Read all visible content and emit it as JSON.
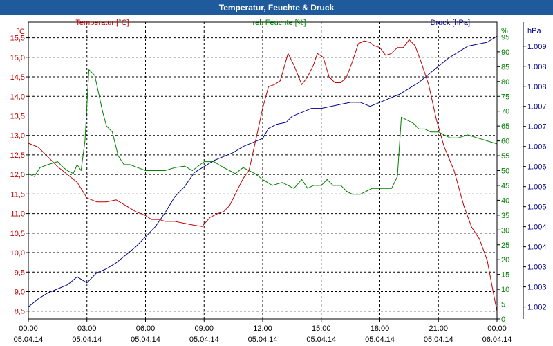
{
  "window": {
    "title": "Temperatur, Feuchte & Druck"
  },
  "chart_data": {
    "type": "line",
    "title": "Temperatur, Feuchte & Druck",
    "x_ticks": [
      {
        "h": 0,
        "time": "00:00",
        "date": "05.04.14"
      },
      {
        "h": 3,
        "time": "03:00",
        "date": "05.04.14"
      },
      {
        "h": 6,
        "time": "06:00",
        "date": "05.04.14"
      },
      {
        "h": 9,
        "time": "09:00",
        "date": "05.04.14"
      },
      {
        "h": 12,
        "time": "12:00",
        "date": "05.04.14"
      },
      {
        "h": 15,
        "time": "15:00",
        "date": "05.04.14"
      },
      {
        "h": 18,
        "time": "18:00",
        "date": "05.04.14"
      },
      {
        "h": 21,
        "time": "21:00",
        "date": "05.04.14"
      },
      {
        "h": 24,
        "time": "00:00",
        "date": "06.04.14"
      }
    ],
    "xlim": [
      0,
      24
    ],
    "axes": {
      "temperature": {
        "unit": "°C",
        "label": "Temperatur [°C]",
        "color": "#c00000",
        "ylim": [
          8.3,
          15.9
        ],
        "ticks": [
          "8,5",
          "9,0",
          "9,5",
          "10,0",
          "10,5",
          "11,0",
          "11,5",
          "12,0",
          "12,5",
          "13,0",
          "13,5",
          "14,0",
          "14,5",
          "15,0",
          "15,5"
        ]
      },
      "humidity": {
        "unit": "%",
        "label": "rel. Feuchte [%]",
        "color": "#008000",
        "ylim": [
          0,
          100
        ],
        "ticks": [
          "0",
          "5",
          "10",
          "15",
          "20",
          "25",
          "30",
          "35",
          "40",
          "45",
          "50",
          "55",
          "60",
          "65",
          "70",
          "75",
          "80",
          "85",
          "90",
          "95"
        ]
      },
      "pressure": {
        "unit": "hPa",
        "label": "Druck [hPa]",
        "color": "#00008b",
        "ylim": [
          1001.7,
          1009.1
        ],
        "ticks": [
          {
            "v": 1002.0,
            "label": "1.002"
          },
          {
            "v": 1002.5,
            "label": "1.003"
          },
          {
            "v": 1003.0,
            "label": "1.003"
          },
          {
            "v": 1003.5,
            "label": "1.004"
          },
          {
            "v": 1004.0,
            "label": "1.004"
          },
          {
            "v": 1004.5,
            "label": "1.005"
          },
          {
            "v": 1005.0,
            "label": "1.005"
          },
          {
            "v": 1005.5,
            "label": "1.006"
          },
          {
            "v": 1006.0,
            "label": "1.006"
          },
          {
            "v": 1006.5,
            "label": "1.007"
          },
          {
            "v": 1007.0,
            "label": "1.007"
          },
          {
            "v": 1007.5,
            "label": "1.008"
          },
          {
            "v": 1008.0,
            "label": "1.008"
          },
          {
            "v": 1008.5,
            "label": "1.009"
          }
        ]
      }
    },
    "series": [
      {
        "name": "Temperatur",
        "axis": "temperature",
        "color": "#c00000",
        "points": [
          [
            0,
            12.8
          ],
          [
            0.5,
            12.7
          ],
          [
            1,
            12.45
          ],
          [
            1.5,
            12.2
          ],
          [
            2,
            12.0
          ],
          [
            2.5,
            11.8
          ],
          [
            3,
            11.4
          ],
          [
            3.5,
            11.3
          ],
          [
            4,
            11.3
          ],
          [
            4.5,
            11.35
          ],
          [
            5,
            11.2
          ],
          [
            5.5,
            11.05
          ],
          [
            6,
            10.95
          ],
          [
            6.3,
            10.85
          ],
          [
            6.7,
            10.85
          ],
          [
            7,
            10.8
          ],
          [
            7.5,
            10.8
          ],
          [
            8,
            10.75
          ],
          [
            8.5,
            10.7
          ],
          [
            8.9,
            10.67
          ],
          [
            9.3,
            10.9
          ],
          [
            9.7,
            11.0
          ],
          [
            10,
            11.05
          ],
          [
            10.3,
            11.2
          ],
          [
            10.7,
            11.6
          ],
          [
            11,
            11.9
          ],
          [
            11.3,
            12.1
          ],
          [
            11.7,
            13.0
          ],
          [
            12,
            13.7
          ],
          [
            12.3,
            14.25
          ],
          [
            12.6,
            14.3
          ],
          [
            12.9,
            14.4
          ],
          [
            13.3,
            15.1
          ],
          [
            13.6,
            14.8
          ],
          [
            14,
            14.3
          ],
          [
            14.3,
            14.5
          ],
          [
            14.6,
            14.8
          ],
          [
            14.8,
            15.1
          ],
          [
            15.1,
            15.0
          ],
          [
            15.4,
            14.5
          ],
          [
            15.7,
            14.35
          ],
          [
            16,
            14.35
          ],
          [
            16.3,
            14.5
          ],
          [
            16.6,
            14.9
          ],
          [
            16.9,
            15.35
          ],
          [
            17.2,
            15.42
          ],
          [
            17.5,
            15.38
          ],
          [
            17.7,
            15.3
          ],
          [
            18,
            15.25
          ],
          [
            18.3,
            15.05
          ],
          [
            18.6,
            15.1
          ],
          [
            18.9,
            15.25
          ],
          [
            19.2,
            15.25
          ],
          [
            19.5,
            15.45
          ],
          [
            19.8,
            15.3
          ],
          [
            20.1,
            14.9
          ],
          [
            20.5,
            14.3
          ],
          [
            20.9,
            13.4
          ],
          [
            21.3,
            12.7
          ],
          [
            21.8,
            12.1
          ],
          [
            22.3,
            11.2
          ],
          [
            22.7,
            10.65
          ],
          [
            23.1,
            10.35
          ],
          [
            23.5,
            9.8
          ],
          [
            23.8,
            9.0
          ],
          [
            24,
            8.5
          ]
        ]
      },
      {
        "name": "rel. Feuchte",
        "axis": "humidity",
        "color": "#008000",
        "points": [
          [
            0,
            49
          ],
          [
            0.3,
            48
          ],
          [
            0.6,
            51
          ],
          [
            1,
            52
          ],
          [
            1.5,
            53
          ],
          [
            1.8,
            51
          ],
          [
            2,
            50
          ],
          [
            2.3,
            49
          ],
          [
            2.5,
            52
          ],
          [
            2.7,
            50
          ],
          [
            2.9,
            60
          ],
          [
            3.1,
            84
          ],
          [
            3.4,
            82
          ],
          [
            3.8,
            70
          ],
          [
            4.0,
            65
          ],
          [
            4.3,
            63
          ],
          [
            4.6,
            55
          ],
          [
            4.9,
            52
          ],
          [
            5.2,
            52
          ],
          [
            5.6,
            51
          ],
          [
            6,
            50
          ],
          [
            6.5,
            50
          ],
          [
            7,
            50
          ],
          [
            7.5,
            51
          ],
          [
            8,
            51.5
          ],
          [
            8.4,
            50
          ],
          [
            9,
            53
          ],
          [
            9.5,
            53
          ],
          [
            10,
            51
          ],
          [
            10.3,
            50
          ],
          [
            10.6,
            49
          ],
          [
            11,
            51
          ],
          [
            11.3,
            50
          ],
          [
            11.6,
            49
          ],
          [
            12,
            47
          ],
          [
            12.5,
            45
          ],
          [
            13,
            46
          ],
          [
            13.3,
            45
          ],
          [
            13.6,
            44
          ],
          [
            14,
            47
          ],
          [
            14.3,
            44
          ],
          [
            14.6,
            45
          ],
          [
            15,
            45
          ],
          [
            15.3,
            47
          ],
          [
            15.6,
            45
          ],
          [
            16,
            45
          ],
          [
            16.3,
            43
          ],
          [
            16.6,
            42
          ],
          [
            17,
            42
          ],
          [
            17.3,
            43
          ],
          [
            17.6,
            44
          ],
          [
            18,
            44
          ],
          [
            18.3,
            44
          ],
          [
            18.6,
            44
          ],
          [
            18.9,
            48
          ],
          [
            19.1,
            68
          ],
          [
            19.4,
            67
          ],
          [
            19.7,
            66
          ],
          [
            20,
            64
          ],
          [
            20.3,
            64
          ],
          [
            20.6,
            63
          ],
          [
            21,
            63
          ],
          [
            21.3,
            62
          ],
          [
            21.6,
            61
          ],
          [
            22,
            61
          ],
          [
            22.5,
            62
          ],
          [
            23,
            61
          ],
          [
            23.5,
            60
          ],
          [
            24,
            59
          ]
        ]
      },
      {
        "name": "Druck",
        "axis": "pressure",
        "color": "#00008b",
        "points": [
          [
            0,
            1002.0
          ],
          [
            0.5,
            1002.2
          ],
          [
            1,
            1002.35
          ],
          [
            1.5,
            1002.45
          ],
          [
            2,
            1002.55
          ],
          [
            2.5,
            1002.75
          ],
          [
            3,
            1002.6
          ],
          [
            3.5,
            1002.85
          ],
          [
            4,
            1002.95
          ],
          [
            4.5,
            1003.1
          ],
          [
            5,
            1003.3
          ],
          [
            5.5,
            1003.5
          ],
          [
            6,
            1003.75
          ],
          [
            6.5,
            1004.0
          ],
          [
            7,
            1004.35
          ],
          [
            7.5,
            1004.75
          ],
          [
            8,
            1005.0
          ],
          [
            8.5,
            1005.35
          ],
          [
            9,
            1005.5
          ],
          [
            9.5,
            1005.65
          ],
          [
            10,
            1005.75
          ],
          [
            10.5,
            1005.85
          ],
          [
            11,
            1006.0
          ],
          [
            11.5,
            1006.1
          ],
          [
            12,
            1006.2
          ],
          [
            12.3,
            1006.45
          ],
          [
            12.7,
            1006.55
          ],
          [
            13.2,
            1006.6
          ],
          [
            13.5,
            1006.75
          ],
          [
            14,
            1006.85
          ],
          [
            14.5,
            1006.95
          ],
          [
            15,
            1006.95
          ],
          [
            15.5,
            1007.0
          ],
          [
            16,
            1007.05
          ],
          [
            16.5,
            1007.1
          ],
          [
            17,
            1007.1
          ],
          [
            17.5,
            1007.0
          ],
          [
            18,
            1007.1
          ],
          [
            18.5,
            1007.2
          ],
          [
            19,
            1007.3
          ],
          [
            19.5,
            1007.45
          ],
          [
            20,
            1007.6
          ],
          [
            20.5,
            1007.8
          ],
          [
            21,
            1008.0
          ],
          [
            21.5,
            1008.2
          ],
          [
            22,
            1008.35
          ],
          [
            22.5,
            1008.5
          ],
          [
            23,
            1008.55
          ],
          [
            23.5,
            1008.6
          ],
          [
            24,
            1008.75
          ]
        ]
      }
    ]
  }
}
